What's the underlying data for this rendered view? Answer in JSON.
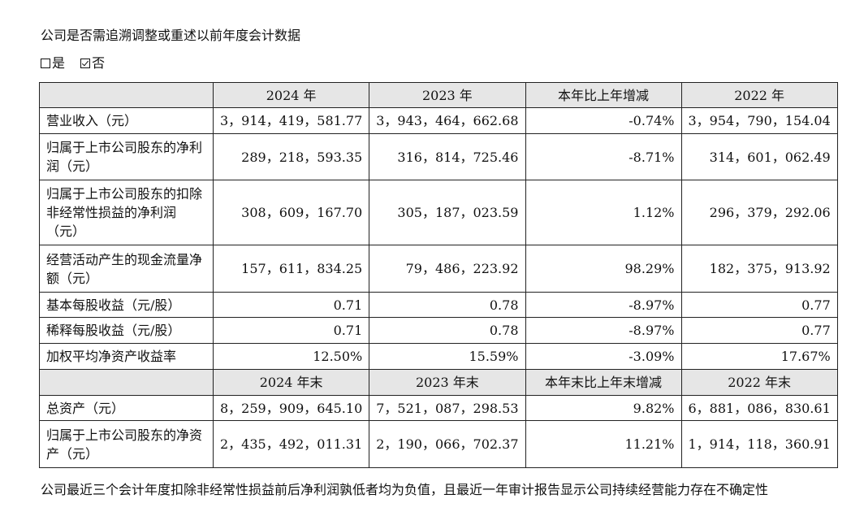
{
  "title": "公司是否需追溯调整或重述以前年度会计数据",
  "options": {
    "yes_label": "是",
    "no_label": "否",
    "selected": "否"
  },
  "table": {
    "header1": [
      "",
      "2024 年",
      "2023 年",
      "本年比上年增减",
      "2022 年"
    ],
    "rows1": [
      {
        "label": "营业收入（元）",
        "v2024": "3，914，419，581.77",
        "v2023": "3，943，464，662.68",
        "change": "-0.74%",
        "v2022": "3，954，790，154.04"
      },
      {
        "label": "归属于上市公司股东的净利润（元）",
        "v2024": "289，218，593.35",
        "v2023": "316，814，725.46",
        "change": "-8.71%",
        "v2022": "314，601，062.49"
      },
      {
        "label": "归属于上市公司股东的扣除非经常性损益的净利润（元）",
        "v2024": "308，609，167.70",
        "v2023": "305，187，023.59",
        "change": "1.12%",
        "v2022": "296，379，292.06"
      },
      {
        "label": "经营活动产生的现金流量净额（元）",
        "v2024": "157，611，834.25",
        "v2023": "79，486，223.92",
        "change": "98.29%",
        "v2022": "182，375，913.92"
      },
      {
        "label": "基本每股收益（元/股）",
        "v2024": "0.71",
        "v2023": "0.78",
        "change": "-8.97%",
        "v2022": "0.77"
      },
      {
        "label": "稀释每股收益（元/股）",
        "v2024": "0.71",
        "v2023": "0.78",
        "change": "-8.97%",
        "v2022": "0.77"
      },
      {
        "label": "加权平均净资产收益率",
        "v2024": "12.50%",
        "v2023": "15.59%",
        "change": "-3.09%",
        "v2022": "17.67%"
      }
    ],
    "header2": [
      "",
      "2024 年末",
      "2023 年末",
      "本年末比上年末增减",
      "2022 年末"
    ],
    "rows2": [
      {
        "label": "总资产（元）",
        "v2024": "8，259，909，645.10",
        "v2023": "7，521，087，298.53",
        "change": "9.82%",
        "v2022": "6，881，086，830.61"
      },
      {
        "label": "归属于上市公司股东的净资产（元）",
        "v2024": "2，435，492，011.31",
        "v2023": "2，190，066，702.37",
        "change": "11.21%",
        "v2022": "1，914，118，360.91"
      }
    ]
  },
  "footer_note": "公司最近三个会计年度扣除非经常性损益前后净利润孰低者均为负值，且最近一年审计报告显示公司持续经营能力存在不确定性"
}
